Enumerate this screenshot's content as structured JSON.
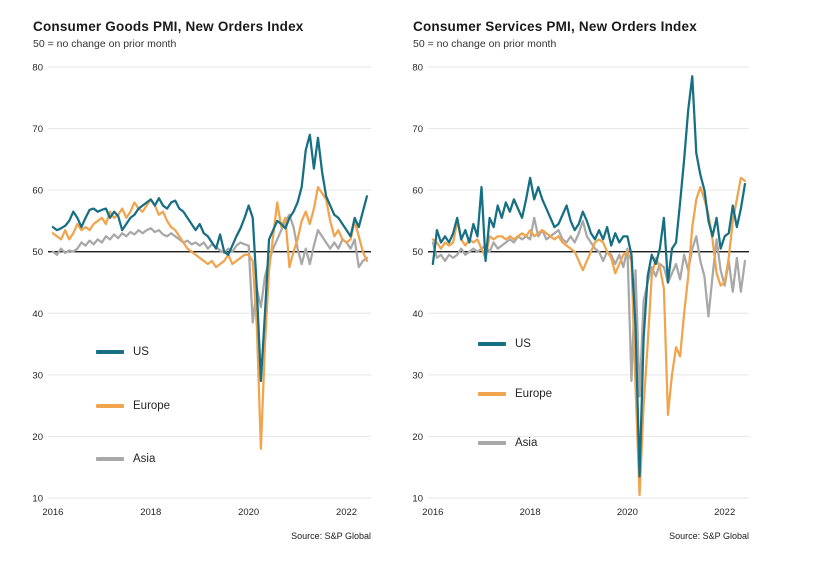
{
  "page": {
    "background": "#ffffff"
  },
  "colors": {
    "us": "#166F82",
    "europe": "#EFA44D",
    "asia": "#A8A8A8",
    "reference_line": "#000000",
    "gridline": "#E6E6E6",
    "tick_text": "#262626"
  },
  "chart_data": [
    {
      "type": "line",
      "title": "Consumer Goods PMI, New Orders Index",
      "subtitle": "50 = no change on prior month",
      "source": "Source: S&P Global",
      "x_start": "2016-01",
      "frequency": "monthly",
      "x_domain": [
        2015.9,
        2022.5
      ],
      "x_ticks": [
        2016,
        2018,
        2020,
        2022
      ],
      "y_ticks": [
        10,
        20,
        30,
        40,
        50,
        60,
        70,
        80
      ],
      "ylim": [
        10,
        80
      ],
      "reference_line": 50,
      "grid": "horizontal-light",
      "legend_position": "inside-left",
      "series": [
        {
          "name": "US",
          "color": "#166F82",
          "values": [
            54,
            53.5,
            53.8,
            54.2,
            55,
            56.5,
            55.5,
            54,
            55.5,
            56.8,
            57,
            56.5,
            56.8,
            57,
            55.5,
            56.5,
            55.8,
            53.5,
            54.5,
            55.5,
            56,
            57,
            57.5,
            58,
            58.5,
            57.5,
            58.7,
            57.5,
            57,
            58,
            58.3,
            57,
            56.5,
            55.5,
            54.5,
            53.5,
            54.5,
            53,
            52.5,
            51.5,
            50.5,
            52.8,
            50,
            49.5,
            51,
            52.5,
            53.8,
            55.5,
            57.5,
            55.5,
            44,
            29,
            40,
            52,
            53.5,
            55,
            54.5,
            53.8,
            55.5,
            56.5,
            58,
            60.5,
            66.5,
            69,
            63.5,
            68.5,
            63,
            59,
            57.5,
            56,
            55.5,
            54.5,
            53.5,
            52.5,
            55.5,
            54,
            56.5,
            59
          ]
        },
        {
          "name": "Europe",
          "color": "#EFA44D",
          "values": [
            53,
            52.5,
            52,
            53.5,
            52,
            53,
            54.5,
            53.5,
            54,
            53.5,
            54.5,
            55,
            55.5,
            54.5,
            56.5,
            55.5,
            56,
            57,
            55.5,
            56.5,
            58,
            57,
            56.5,
            57.5,
            58.5,
            57.5,
            56,
            56.5,
            55,
            54,
            53.5,
            52.5,
            51.5,
            50.5,
            50,
            49.5,
            49,
            48.5,
            48,
            48.5,
            47.5,
            48,
            48.5,
            49.5,
            48,
            48.5,
            49,
            49.5,
            49.5,
            48.5,
            38,
            18,
            35,
            47,
            52.5,
            58,
            54,
            55.5,
            47.5,
            50,
            52,
            55,
            56.5,
            54.5,
            57,
            60.5,
            59.5,
            58.5,
            55,
            52.5,
            53.5,
            52,
            51.5,
            52,
            55,
            52.5,
            50,
            48.5
          ]
        },
        {
          "name": "Asia",
          "color": "#A8A8A8",
          "values": [
            50,
            49.5,
            50.5,
            49.8,
            50.2,
            50,
            50.5,
            51.5,
            51,
            51.8,
            51.2,
            52,
            51.5,
            52.5,
            52,
            52.8,
            52.2,
            53,
            52.5,
            53.2,
            52.8,
            53.5,
            53,
            53.5,
            53.8,
            53.2,
            53.5,
            52.8,
            52.5,
            53,
            52.5,
            52,
            51.5,
            51.8,
            51.2,
            51.5,
            51,
            51.5,
            50.5,
            51.2,
            50.8,
            50.2,
            49.8,
            50.5,
            50,
            51,
            51.5,
            51.2,
            51,
            38.5,
            44,
            41,
            46,
            48.5,
            50.5,
            52,
            53.5,
            55,
            56,
            54,
            50.5,
            48,
            50.5,
            48,
            51,
            53.5,
            52.5,
            51.5,
            50.5,
            51.5,
            50.5,
            52,
            51.5,
            50.5,
            52,
            47.5,
            48.5,
            49
          ]
        }
      ]
    },
    {
      "type": "line",
      "title": "Consumer Services PMI, New Orders Index",
      "subtitle": "50 = no change on prior month",
      "source": "Source: S&P Global",
      "x_start": "2016-01",
      "frequency": "monthly",
      "x_domain": [
        2015.9,
        2022.5
      ],
      "x_ticks": [
        2016,
        2018,
        2020,
        2022
      ],
      "y_ticks": [
        10,
        20,
        30,
        40,
        50,
        60,
        70,
        80
      ],
      "ylim": [
        10,
        80
      ],
      "reference_line": 50,
      "grid": "horizontal-light",
      "legend_position": "inside-left",
      "series": [
        {
          "name": "US",
          "color": "#166F82",
          "values": [
            48,
            53.5,
            51.5,
            52.5,
            51.5,
            53,
            55.5,
            52,
            53.5,
            51.5,
            54.5,
            52.5,
            60.5,
            48.5,
            55.5,
            54,
            57.5,
            55.5,
            58,
            56.5,
            58.5,
            57,
            55.5,
            58.5,
            62,
            58.5,
            60.5,
            58.5,
            57,
            55.5,
            54,
            54.5,
            56,
            57.5,
            55,
            53.5,
            54.5,
            56.5,
            55,
            53,
            52,
            53.5,
            52,
            54,
            51,
            53,
            51.5,
            52.5,
            52.5,
            49.5,
            38,
            13.5,
            36,
            46,
            49.5,
            48,
            50.5,
            55.5,
            45,
            50.5,
            51.5,
            58,
            65,
            73,
            78.5,
            66,
            62.5,
            60,
            55,
            52.5,
            55.5,
            50.5,
            52.5,
            53,
            57.5,
            54,
            57,
            61
          ]
        },
        {
          "name": "Europe",
          "color": "#EFA44D",
          "values": [
            52,
            51.5,
            50.5,
            51.5,
            51,
            51.5,
            55,
            52,
            51,
            52,
            51.5,
            52,
            50.5,
            49,
            52.5,
            52,
            52.5,
            52.5,
            52,
            52.5,
            52,
            52.5,
            53,
            52.5,
            53.5,
            52.5,
            53,
            53.5,
            53,
            52.5,
            52,
            52.5,
            51.5,
            51,
            50.5,
            50,
            48.5,
            47,
            48.5,
            50,
            51.5,
            52,
            51.5,
            50,
            49,
            46.5,
            48,
            49.5,
            50,
            48.5,
            28,
            10.5,
            25,
            35,
            46,
            49,
            47.5,
            44,
            23.5,
            30,
            34.5,
            33,
            40,
            46,
            54,
            58.5,
            60.5,
            58.5,
            56,
            52,
            46.5,
            44.5,
            45,
            49,
            55,
            58.5,
            62,
            61.5
          ]
        },
        {
          "name": "Asia",
          "color": "#A8A8A8",
          "values": [
            51.5,
            49,
            49.5,
            48.5,
            49.5,
            49,
            49.5,
            50.5,
            49.5,
            50,
            50.5,
            50,
            50.5,
            51,
            50,
            51.5,
            50.5,
            51,
            51.5,
            52,
            51.5,
            52.5,
            52,
            52.5,
            52,
            55.5,
            52.5,
            53.5,
            52,
            52.5,
            53,
            53.5,
            52,
            51.5,
            52.5,
            51.5,
            53,
            55,
            52.5,
            51.5,
            50.5,
            50,
            48.5,
            50,
            49.5,
            48,
            49.5,
            47.5,
            50.5,
            29,
            47,
            26.5,
            42,
            45,
            47.5,
            46,
            48,
            47.5,
            45,
            46.5,
            48,
            45.5,
            49.5,
            47,
            50.5,
            52.5,
            48.5,
            46,
            39.5,
            46,
            52,
            47,
            44.5,
            48.5,
            43.5,
            49,
            43.5,
            48.5
          ]
        }
      ]
    }
  ]
}
